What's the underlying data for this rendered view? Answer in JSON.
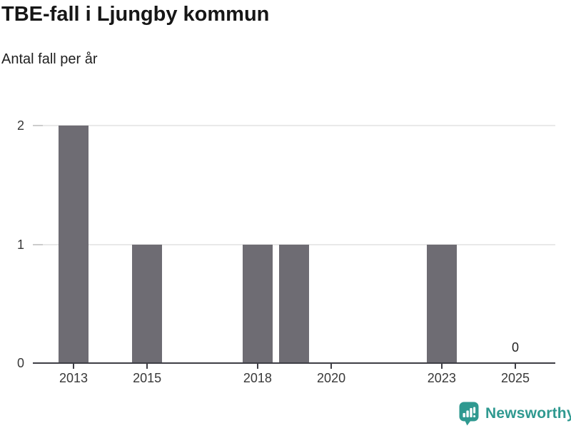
{
  "header": {
    "title": "TBE-fall i Ljungby kommun",
    "subtitle": "Antal fall per år"
  },
  "branding": {
    "logo_text": "Newsworthy",
    "brand_color": "#2f9990"
  },
  "colors": {
    "bar": "#6e6c73",
    "axis": "#3e3e45",
    "gridline": "#e9e9e9",
    "tick_label": "#383838",
    "title": "#161616"
  },
  "chart_data": {
    "type": "bar",
    "title": "TBE-fall i Ljungby kommun",
    "subtitle": "Antal fall per år",
    "categories": [
      2013,
      2014,
      2015,
      2016,
      2017,
      2018,
      2019,
      2020,
      2021,
      2022,
      2023,
      2024,
      2025
    ],
    "values": [
      2,
      0,
      1,
      0,
      0,
      1,
      1,
      0,
      0,
      0,
      1,
      0,
      0
    ],
    "xlabel": "",
    "ylabel": "Antal fall per år",
    "ylim": [
      0,
      2
    ],
    "yticks": [
      0,
      1,
      2
    ],
    "xticks_labeled": [
      2013,
      2015,
      2018,
      2020,
      2023,
      2025
    ],
    "grid": "horizontal",
    "legend": "none",
    "bar_color": "#6e6c73",
    "annotations": [
      {
        "x": 2025,
        "text": "0"
      }
    ]
  }
}
